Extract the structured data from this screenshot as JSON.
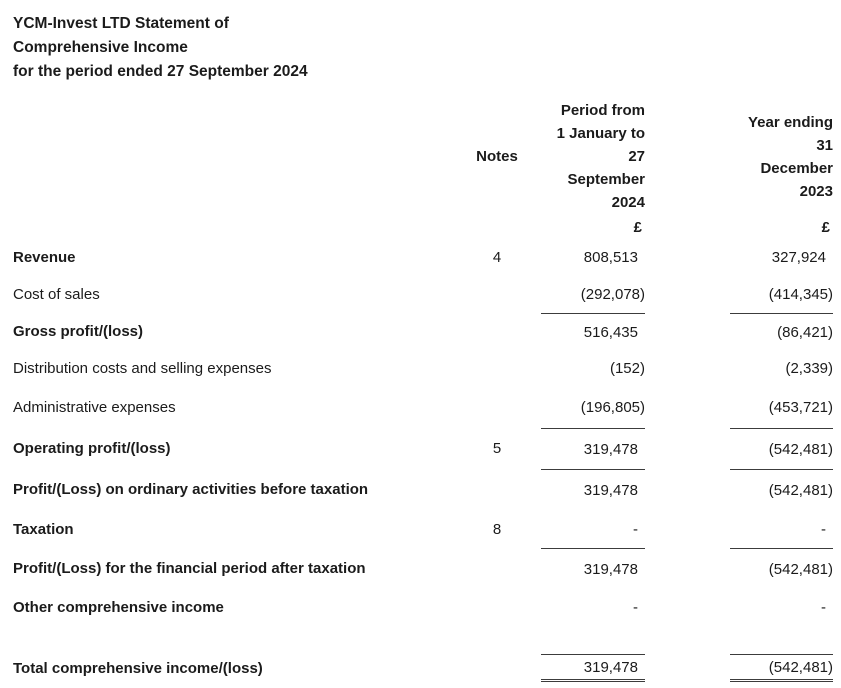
{
  "document": {
    "title_lines": [
      "YCM-Invest LTD Statement of",
      "Comprehensive Income",
      "for the period ended 27 September 2024"
    ]
  },
  "table": {
    "notes_header": "Notes",
    "col1_header_lines": [
      "Period from",
      "1 January to",
      "27",
      "September",
      "2024"
    ],
    "col2_header_lines": [
      "Year ending",
      "31",
      "December",
      "2023"
    ],
    "currency_symbol": "£",
    "rows": [
      {
        "label": "Revenue",
        "note": "4",
        "col1": "808,513",
        "col2": "327,924"
      },
      {
        "label": "Cost of sales",
        "note": "",
        "col1": "(292,078)",
        "col2": "(414,345)"
      },
      {
        "label": "Gross profit/(loss)",
        "note": "",
        "col1": "516,435",
        "col2": "(86,421)"
      },
      {
        "label": "Distribution costs and selling expenses",
        "note": "",
        "col1": "(152)",
        "col2": "(2,339)"
      },
      {
        "label": "Administrative expenses",
        "note": "",
        "col1": "(196,805)",
        "col2": "(453,721)"
      },
      {
        "label": "Operating profit/(loss)",
        "note": "5",
        "col1": "319,478",
        "col2": "(542,481)"
      },
      {
        "label": "Profit/(Loss) on ordinary activities before taxation",
        "note": "",
        "col1": "319,478",
        "col2": "(542,481)"
      },
      {
        "label": "Taxation",
        "note": "8",
        "col1": "-",
        "col2": "-"
      },
      {
        "label": "Profit/(Loss) for the financial period after taxation",
        "note": "",
        "col1": "319,478",
        "col2": "(542,481)"
      },
      {
        "label": "Other comprehensive income",
        "note": "",
        "col1": "-",
        "col2": "-"
      },
      {
        "label": "Total comprehensive income/(loss)",
        "note": "",
        "col1": "319,478",
        "col2": "(542,481)"
      }
    ]
  }
}
